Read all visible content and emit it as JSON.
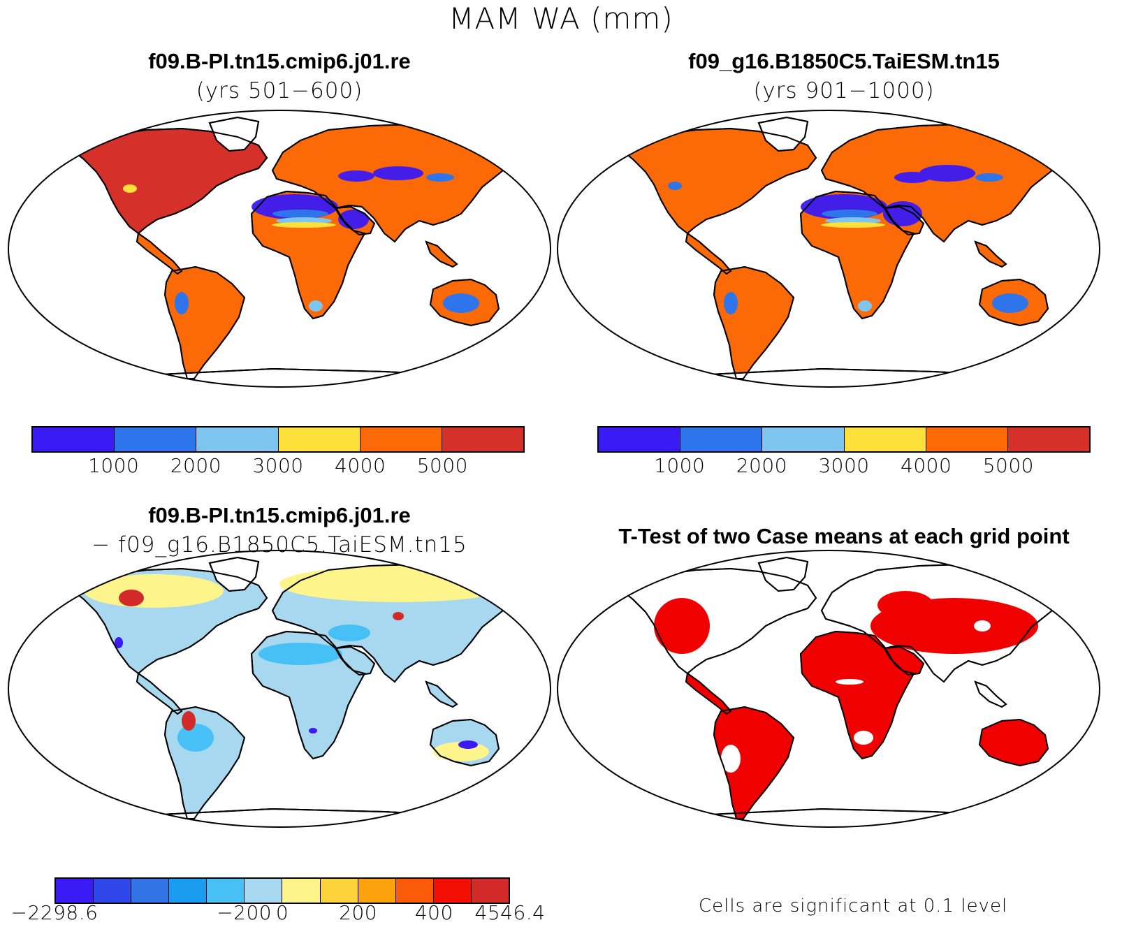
{
  "figure_title": "MAM WA (mm)",
  "panels": {
    "top_left": {
      "title": "f09.B-PI.tn15.cmip6.j01.re",
      "subtitle": "(yrs 501−600)"
    },
    "top_right": {
      "title": "f09_g16.B1850C5.TaiESM.tn15",
      "subtitle": "(yrs 901−1000)"
    },
    "bottom_left": {
      "title": "f09.B-PI.tn15.cmip6.j01.re",
      "subtitle": "− f09_g16.B1850C5.TaiESM.tn15"
    },
    "bottom_right": {
      "title": "T-Test of two Case means at each grid point"
    }
  },
  "colorbar_abs": {
    "colors": [
      "#3a1af5",
      "#2e74ea",
      "#7ec6ef",
      "#fde03a",
      "#fb6a06",
      "#d6302b"
    ],
    "labels": [
      "1000",
      "2000",
      "3000",
      "4000",
      "5000"
    ]
  },
  "colorbar_diff": {
    "colors": [
      "#3a1af5",
      "#2f47e8",
      "#3274e6",
      "#1a9cf1",
      "#46c0f5",
      "#a8d8ef",
      "#fdf58c",
      "#fcd33a",
      "#fba20c",
      "#fb5a08",
      "#f30e04",
      "#d22a28"
    ],
    "labels": [
      "−2298.6",
      "−200",
      "0",
      "200",
      "400",
      "4546.4"
    ]
  },
  "significance_note": "Cells are significant at 0.1 level",
  "significance_color": "#f00000",
  "land_colors": {
    "dominant_abs_left": "#fb6a06",
    "north_america_abs_left": "#d6302b",
    "dominant_abs_right": "#fb6a06",
    "dry_regions": "#3a1af5",
    "diff_dominant": "#a8d8ef",
    "diff_north": "#fdf58c"
  }
}
